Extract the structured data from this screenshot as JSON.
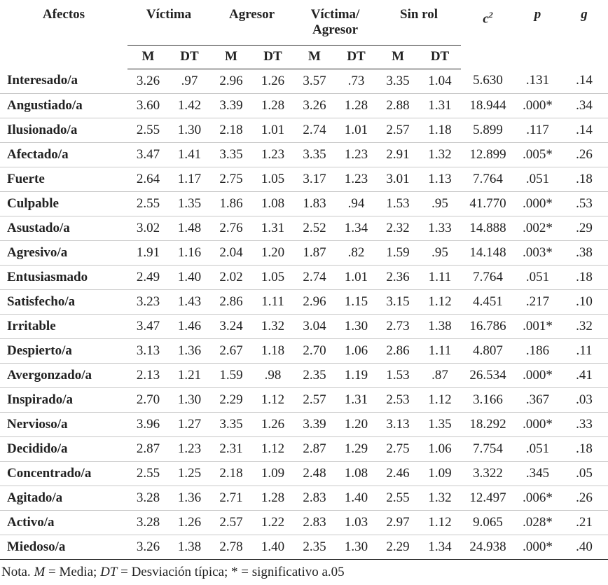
{
  "table": {
    "header": {
      "label": "Afectos",
      "groups": [
        "Víctima",
        "Agresor",
        "Víctima/ Agresor",
        "Sin rol"
      ],
      "sub": [
        "M",
        "DT",
        "M",
        "DT",
        "M",
        "DT",
        "M",
        "DT"
      ],
      "stats": [
        {
          "text": "c",
          "sup": "2"
        },
        {
          "text": "p"
        },
        {
          "text": "g"
        }
      ]
    },
    "rows": [
      [
        "Interesado/a",
        "3.26",
        ".97",
        "2.96",
        "1.26",
        "3.57",
        ".73",
        "3.35",
        "1.04",
        "5.630",
        ".131",
        ".14"
      ],
      [
        "Angustiado/a",
        "3.60",
        "1.42",
        "3.39",
        "1.28",
        "3.26",
        "1.28",
        "2.88",
        "1.31",
        "18.944",
        ".000*",
        ".34"
      ],
      [
        "Ilusionado/a",
        "2.55",
        "1.30",
        "2.18",
        "1.01",
        "2.74",
        "1.01",
        "2.57",
        "1.18",
        "5.899",
        ".117",
        ".14"
      ],
      [
        "Afectado/a",
        "3.47",
        "1.41",
        "3.35",
        "1.23",
        "3.35",
        "1.23",
        "2.91",
        "1.32",
        "12.899",
        ".005*",
        ".26"
      ],
      [
        "Fuerte",
        "2.64",
        "1.17",
        "2.75",
        "1.05",
        "3.17",
        "1.23",
        "3.01",
        "1.13",
        "7.764",
        ".051",
        ".18"
      ],
      [
        "Culpable",
        "2.55",
        "1.35",
        "1.86",
        "1.08",
        "1.83",
        ".94",
        "1.53",
        ".95",
        "41.770",
        ".000*",
        ".53"
      ],
      [
        "Asustado/a",
        "3.02",
        "1.48",
        "2.76",
        "1.31",
        "2.52",
        "1.34",
        "2.32",
        "1.33",
        "14.888",
        ".002*",
        ".29"
      ],
      [
        "Agresivo/a",
        "1.91",
        "1.16",
        "2.04",
        "1.20",
        "1.87",
        ".82",
        "1.59",
        ".95",
        "14.148",
        ".003*",
        ".38"
      ],
      [
        "Entusiasmado",
        "2.49",
        "1.40",
        "2.02",
        "1.05",
        "2.74",
        "1.01",
        "2.36",
        "1.11",
        "7.764",
        ".051",
        ".18"
      ],
      [
        "Satisfecho/a",
        "3.23",
        "1.43",
        "2.86",
        "1.11",
        "2.96",
        "1.15",
        "3.15",
        "1.12",
        "4.451",
        ".217",
        ".10"
      ],
      [
        "Irritable",
        "3.47",
        "1.46",
        "3.24",
        "1.32",
        "3.04",
        "1.30",
        "2.73",
        "1.38",
        "16.786",
        ".001*",
        ".32"
      ],
      [
        "Despierto/a",
        "3.13",
        "1.36",
        "2.67",
        "1.18",
        "2.70",
        "1.06",
        "2.86",
        "1.11",
        "4.807",
        ".186",
        ".11"
      ],
      [
        "Avergonzado/a",
        "2.13",
        "1.21",
        "1.59",
        ".98",
        "2.35",
        "1.19",
        "1.53",
        ".87",
        "26.534",
        ".000*",
        ".41"
      ],
      [
        "Inspirado/a",
        "2.70",
        "1.30",
        "2.29",
        "1.12",
        "2.57",
        "1.31",
        "2.53",
        "1.12",
        "3.166",
        ".367",
        ".03"
      ],
      [
        "Nervioso/a",
        "3.96",
        "1.27",
        "3.35",
        "1.26",
        "3.39",
        "1.20",
        "3.13",
        "1.35",
        "18.292",
        ".000*",
        ".33"
      ],
      [
        "Decidido/a",
        "2.87",
        "1.23",
        "2.31",
        "1.12",
        "2.87",
        "1.29",
        "2.75",
        "1.06",
        "7.754",
        ".051",
        ".18"
      ],
      [
        "Concentrado/a",
        "2.55",
        "1.25",
        "2.18",
        "1.09",
        "2.48",
        "1.08",
        "2.46",
        "1.09",
        "3.322",
        ".345",
        ".05"
      ],
      [
        "Agitado/a",
        "3.28",
        "1.36",
        "2.71",
        "1.28",
        "2.83",
        "1.40",
        "2.55",
        "1.32",
        "12.497",
        ".006*",
        ".26"
      ],
      [
        "Activo/a",
        "3.28",
        "1.26",
        "2.57",
        "1.22",
        "2.83",
        "1.03",
        "2.97",
        "1.12",
        "9.065",
        ".028*",
        ".21"
      ],
      [
        "Miedoso/a",
        "3.26",
        "1.38",
        "2.78",
        "1.40",
        "2.35",
        "1.30",
        "2.29",
        "1.34",
        "24.938",
        ".000*",
        ".40"
      ]
    ]
  },
  "note": {
    "parts": [
      "Nota. ",
      "M",
      " = Media; ",
      "DT",
      " = Desviación típica; * = significativo a.05"
    ]
  }
}
